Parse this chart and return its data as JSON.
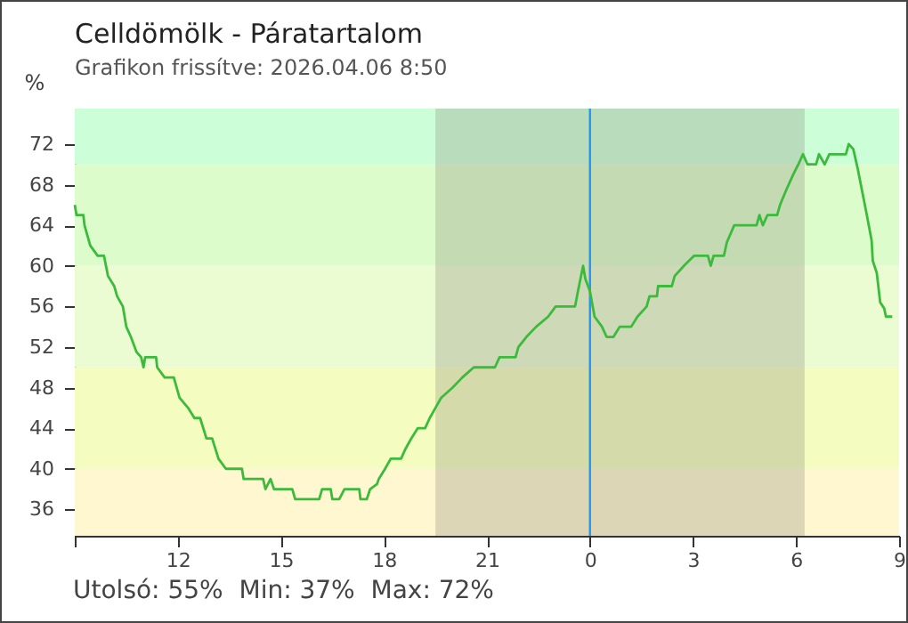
{
  "chart_data": {
    "type": "line",
    "title": "Celldömölk - Páratartalom",
    "subtitle": "Grafikon frissítve: 2026.04.06 8:50",
    "ylabel": "%",
    "annotations": [
      "Utolsó: 55%  Min: 37%  Max: 72%"
    ],
    "xlim": [
      "2026-04-05T09:00",
      "2026-04-06T09:00"
    ],
    "ylim": [
      33.4,
      75.5
    ],
    "xticks": [
      {
        "value": "2026-04-05T09:00",
        "label": null
      },
      {
        "value": "2026-04-05T12:00",
        "label": "12"
      },
      {
        "value": "2026-04-05T15:00",
        "label": "15"
      },
      {
        "value": "2026-04-05T18:00",
        "label": "18"
      },
      {
        "value": "2026-04-05T21:00",
        "label": "21"
      },
      {
        "value": "2026-04-06T00:00",
        "label": "0"
      },
      {
        "value": "2026-04-06T03:00",
        "label": "3"
      },
      {
        "value": "2026-04-06T06:00",
        "label": "6"
      },
      {
        "value": "2026-04-06T09:00",
        "label": "9"
      }
    ],
    "yticks": [
      36,
      40,
      44,
      48,
      52,
      56,
      60,
      64,
      68,
      72
    ],
    "grid": false,
    "bands": [
      {
        "axis": "y",
        "from": 70,
        "to": 75.5,
        "color": "#ccffd8"
      },
      {
        "axis": "y",
        "from": 60,
        "to": 70,
        "color": "#dcfccc"
      },
      {
        "axis": "y",
        "from": 50,
        "to": 60,
        "color": "#ebfcd2"
      },
      {
        "axis": "y",
        "from": 40,
        "to": 50,
        "color": "#f5fcc0"
      },
      {
        "axis": "y",
        "from": 33.4,
        "to": 40,
        "color": "#fff7d0"
      },
      {
        "axis": "x",
        "from": "2026-04-05T19:30",
        "to": "2026-04-06T06:15",
        "color": "#8a8a7a"
      }
    ],
    "ref_lines": [
      {
        "axis": "x",
        "value": "2026-04-06T00:00",
        "color": "#2196f3"
      }
    ],
    "series": [
      {
        "color": "#3cba3c",
        "x": [
          "2026-04-05T09:00",
          "2026-04-05T09:03",
          "2026-04-05T09:15",
          "2026-04-05T09:17",
          "2026-04-05T09:27",
          "2026-04-05T09:40",
          "2026-04-05T09:51",
          "2026-04-05T09:58",
          "2026-04-05T10:09",
          "2026-04-05T10:14",
          "2026-04-05T10:24",
          "2026-04-05T10:30",
          "2026-04-05T10:38",
          "2026-04-05T10:48",
          "2026-04-05T10:56",
          "2026-04-05T11:00",
          "2026-04-05T11:03",
          "2026-04-05T11:22",
          "2026-04-05T11:24",
          "2026-04-05T11:37",
          "2026-04-05T11:53",
          "2026-04-05T12:03",
          "2026-04-05T12:18",
          "2026-04-05T12:29",
          "2026-04-05T12:39",
          "2026-04-05T12:50",
          "2026-04-05T13:00",
          "2026-04-05T13:11",
          "2026-04-05T13:24",
          "2026-04-05T13:52",
          "2026-04-05T13:55",
          "2026-04-05T14:29",
          "2026-04-05T14:33",
          "2026-04-05T14:42",
          "2026-04-05T14:48",
          "2026-04-05T15:20",
          "2026-04-05T15:25",
          "2026-04-05T16:07",
          "2026-04-05T16:12",
          "2026-04-05T16:27",
          "2026-04-05T16:30",
          "2026-04-05T16:42",
          "2026-04-05T16:51",
          "2026-04-05T17:17",
          "2026-04-05T17:19",
          "2026-04-05T17:30",
          "2026-04-05T17:36",
          "2026-04-05T17:48",
          "2026-04-05T17:51",
          "2026-04-05T18:02",
          "2026-04-05T18:12",
          "2026-04-05T18:30",
          "2026-04-05T18:38",
          "2026-04-05T18:48",
          "2026-04-05T18:59",
          "2026-04-05T19:12",
          "2026-04-05T19:20",
          "2026-04-05T19:30",
          "2026-04-05T19:40",
          "2026-04-05T20:00",
          "2026-04-05T20:17",
          "2026-04-05T20:37",
          "2026-04-05T21:14",
          "2026-04-05T21:22",
          "2026-04-05T21:50",
          "2026-04-05T21:55",
          "2026-04-05T22:09",
          "2026-04-05T22:26",
          "2026-04-05T22:47",
          "2026-04-05T23:00",
          "2026-04-05T23:34",
          "2026-04-05T23:39",
          "2026-04-05T23:48",
          "2026-04-05T23:52",
          "2026-04-06T00:00",
          "2026-04-06T00:08",
          "2026-04-06T00:21",
          "2026-04-06T00:29",
          "2026-04-06T00:41",
          "2026-04-06T00:52",
          "2026-04-06T01:12",
          "2026-04-06T01:23",
          "2026-04-06T01:39",
          "2026-04-06T01:44",
          "2026-04-06T01:57",
          "2026-04-06T01:59",
          "2026-04-06T02:23",
          "2026-04-06T02:28",
          "2026-04-06T02:44",
          "2026-04-06T03:02",
          "2026-04-06T03:26",
          "2026-04-06T03:31",
          "2026-04-06T03:36",
          "2026-04-06T03:54",
          "2026-04-06T03:59",
          "2026-04-06T04:12",
          "2026-04-06T04:51",
          "2026-04-06T04:56",
          "2026-04-06T05:02",
          "2026-04-06T05:10",
          "2026-04-06T05:27",
          "2026-04-06T05:32",
          "2026-04-06T05:43",
          "2026-04-06T05:55",
          "2026-04-06T06:04",
          "2026-04-06T06:12",
          "2026-04-06T06:20",
          "2026-04-06T06:35",
          "2026-04-06T06:40",
          "2026-04-06T06:50",
          "2026-04-06T06:58",
          "2026-04-06T07:27",
          "2026-04-06T07:32",
          "2026-04-06T07:40",
          "2026-04-06T07:48",
          "2026-04-06T07:56",
          "2026-04-06T08:03",
          "2026-04-06T08:12",
          "2026-04-06T08:14",
          "2026-04-06T08:21",
          "2026-04-06T08:27",
          "2026-04-06T08:34",
          "2026-04-06T08:37",
          "2026-04-06T08:48"
        ],
        "values": [
          66,
          65,
          65,
          64,
          62,
          61,
          61,
          59,
          58,
          57,
          56,
          54,
          53,
          51.5,
          51,
          50,
          51,
          51,
          50,
          49,
          49,
          47,
          46,
          45,
          45,
          43,
          43,
          41,
          40,
          40,
          39,
          39,
          38,
          39,
          38,
          38,
          37,
          37,
          38,
          38,
          37,
          37,
          38,
          38,
          37,
          37,
          38,
          38.5,
          39,
          40,
          41,
          41,
          42,
          43,
          44,
          44,
          45,
          46,
          47,
          48,
          49,
          50,
          50,
          51,
          51,
          52,
          53,
          54,
          55,
          56,
          56,
          57.5,
          60,
          58.7,
          57.5,
          55,
          54,
          53,
          53,
          54,
          54,
          55,
          56,
          57,
          57,
          58,
          58,
          59,
          60,
          61,
          61,
          60,
          61,
          61,
          62.3,
          64,
          64,
          65,
          64,
          65,
          65,
          66,
          67.5,
          69,
          70,
          71,
          70,
          70,
          71,
          70,
          71,
          71,
          72,
          71.5,
          69.5,
          67.2,
          65.2,
          62.5,
          60.5,
          59.3,
          56.4,
          55.8,
          55,
          55
        ]
      }
    ]
  }
}
